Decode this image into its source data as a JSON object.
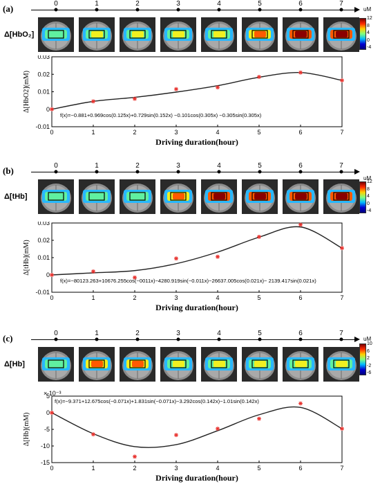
{
  "panels": [
    {
      "label": "(a)",
      "row_label": "Δ[HbO₂]",
      "unit": "uM",
      "timeline_ticks": [
        "0",
        "1",
        "2",
        "3",
        "4",
        "5",
        "6",
        "7"
      ],
      "colorbar_ticks": [
        "12",
        "8",
        "4",
        "0",
        "-4"
      ],
      "brain_intensity": [
        0.35,
        0.5,
        0.5,
        0.55,
        0.6,
        0.72,
        0.82,
        0.9
      ]
    },
    {
      "label": "(b)",
      "row_label": "Δ[tHb]",
      "unit": "uM",
      "timeline_ticks": [
        "0",
        "1",
        "2",
        "3",
        "4",
        "5",
        "6",
        "7"
      ],
      "colorbar_ticks": [
        "12",
        "8",
        "4",
        "0",
        "-4"
      ],
      "brain_intensity": [
        0.35,
        0.42,
        0.45,
        0.75,
        0.8,
        0.85,
        0.88,
        0.95
      ]
    },
    {
      "label": "(c)",
      "row_label": "Δ[Hb]",
      "unit": "uM",
      "timeline_ticks": [
        "0",
        "1",
        "2",
        "3",
        "4",
        "5",
        "6",
        "7"
      ],
      "colorbar_ticks": [
        "10",
        "6",
        "2",
        "-2",
        "-6"
      ],
      "brain_intensity": [
        0.45,
        0.7,
        0.62,
        0.55,
        0.6,
        0.6,
        0.6,
        0.58
      ]
    }
  ],
  "chart_data": [
    {
      "type": "scatter",
      "xlabel": "Driving duration(hour)",
      "ylabel": "Δ[HbO2](mM)",
      "x": [
        0,
        1,
        2,
        3,
        4,
        5,
        6,
        7
      ],
      "y": [
        0.0,
        0.0045,
        0.006,
        0.0115,
        0.0125,
        0.0185,
        0.021,
        0.0165
      ],
      "xlim": [
        0,
        7
      ],
      "ylim": [
        -0.01,
        0.03
      ],
      "xticks": [
        "0",
        "1",
        "2",
        "3",
        "4",
        "5",
        "6",
        "7"
      ],
      "yticks": [
        "-0.01",
        "0",
        "0.01",
        "0.02",
        "0.03"
      ],
      "annotation": "f(x)=−0.881+0.969cos(0.125x)+0.729sin(0.152x) −0.101cos(0.305x) −0.305sin(0.305x)",
      "fit_curve": true,
      "marker_color": "#e8322e",
      "curve_color": "#222222"
    },
    {
      "type": "scatter",
      "xlabel": "Driving duration(hour)",
      "ylabel": "Δ[tHb](mM)",
      "x": [
        0,
        1,
        2,
        3,
        4,
        5,
        6,
        7
      ],
      "y": [
        0.0,
        0.002,
        -0.0015,
        0.0095,
        0.0105,
        0.022,
        0.029,
        0.0155
      ],
      "xlim": [
        0,
        7
      ],
      "ylim": [
        -0.01,
        0.03
      ],
      "xticks": [
        "0",
        "1",
        "2",
        "3",
        "4",
        "5",
        "6",
        "7"
      ],
      "yticks": [
        "-0.01",
        "0",
        "0.01",
        "0.02",
        "0.03"
      ],
      "annotation": "f(x)=−80123.263+10676.255cos(−0011x)−4280.919sin(−0.011x)−26637.005cos(0.021x)− 2139.417sin(0.021x)",
      "fit_curve": true,
      "marker_color": "#e8322e",
      "curve_color": "#222222"
    },
    {
      "type": "scatter",
      "xlabel": "Driving duration(hour)",
      "ylabel": "Δ[Hb](mM)",
      "x": [
        0,
        1,
        2,
        3,
        4,
        5,
        6,
        7
      ],
      "y": [
        0.0,
        -6.5,
        -13.2,
        -6.7,
        -4.8,
        -1.8,
        2.8,
        -4.8
      ],
      "xlim": [
        0,
        7
      ],
      "ylim": [
        -15,
        5
      ],
      "xticks": [
        "0",
        "1",
        "2",
        "3",
        "4",
        "5",
        "6",
        "7"
      ],
      "yticks": [
        "-15",
        "-10",
        "-5",
        "0",
        "5"
      ],
      "scale_note": "× 10⁻³",
      "annotation": "f(x)=−9.371+12.675cos(−0.071x)+1.831sin(−0.071x)−3.292cos(0.142x)−1.01sin(0.142x)",
      "fit_curve": true,
      "marker_color": "#e8322e",
      "curve_color": "#222222"
    }
  ]
}
